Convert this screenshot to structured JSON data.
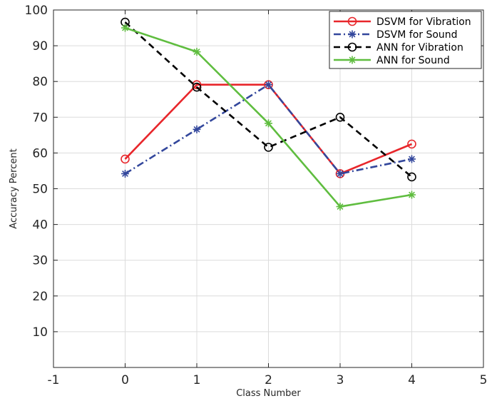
{
  "chart_data": {
    "type": "line",
    "xlabel": "Class Number",
    "ylabel": "Accuracy Percent",
    "xlim": [
      -1,
      5
    ],
    "ylim": [
      0,
      100
    ],
    "x_ticks": [
      "-1",
      "0",
      "1",
      "2",
      "3",
      "4",
      "5"
    ],
    "y_ticks": [
      "10",
      "20",
      "30",
      "40",
      "50",
      "60",
      "70",
      "80",
      "90",
      "100"
    ],
    "x_tick_values": [
      -1,
      0,
      1,
      2,
      3,
      4,
      5
    ],
    "y_tick_values": [
      10,
      20,
      30,
      40,
      50,
      60,
      70,
      80,
      90,
      100
    ],
    "grid": true,
    "legend_position": "top-right",
    "x": [
      0,
      1,
      2,
      3,
      4
    ],
    "series": [
      {
        "name": "DSVM for Vibration",
        "values": [
          58.3,
          79.1,
          79.1,
          54.2,
          62.5
        ],
        "color": "#e8262b",
        "dash": "solid",
        "marker": "circle"
      },
      {
        "name": "DSVM for Sound",
        "values": [
          54.2,
          66.6,
          79.1,
          54.2,
          58.3
        ],
        "color": "#33479c",
        "dash": "dashdot",
        "marker": "asterisk"
      },
      {
        "name": "ANN for Vibration",
        "values": [
          96.6,
          78.4,
          61.6,
          70.0,
          53.3
        ],
        "color": "#000000",
        "dash": "dashed",
        "marker": "circle"
      },
      {
        "name": "ANN for Sound",
        "values": [
          95.0,
          88.3,
          68.3,
          45.0,
          48.3
        ],
        "color": "#5fbd3f",
        "dash": "solid",
        "marker": "asterisk"
      }
    ]
  }
}
